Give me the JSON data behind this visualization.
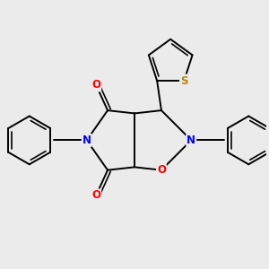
{
  "background_color": "#ebebeb",
  "atom_colors": {
    "C": "#000000",
    "N": "#0000ff",
    "O": "#ff0000",
    "S": "#b8860b"
  },
  "bond_color": "#000000",
  "figsize": [
    3.0,
    3.0
  ],
  "dpi": 100
}
